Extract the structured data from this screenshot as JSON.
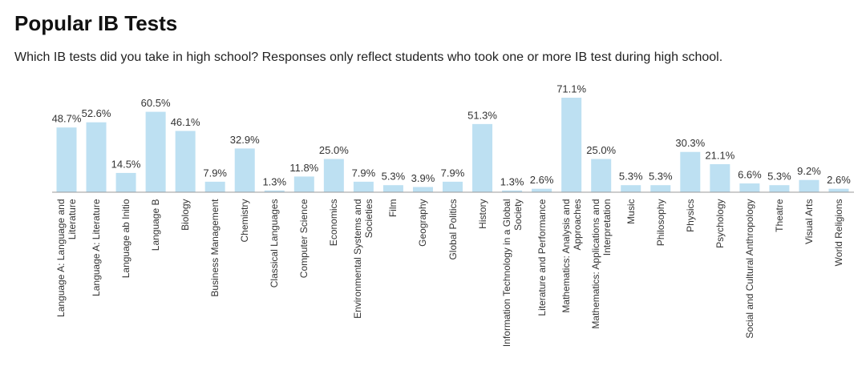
{
  "chart_data": {
    "type": "bar",
    "title": "Popular IB Tests",
    "subtitle": "Which IB tests did you take in high school? Responses only reflect students who took one or more IB test during high school.",
    "color": "#bde0f2",
    "categories": [
      "Language A: Language and Literature",
      "Language A: Literature",
      "Language ab Initio",
      "Language B",
      "Biology",
      "Business Management",
      "Chemistry",
      "Classical Languages",
      "Computer Science",
      "Economics",
      "Environmental Systems and Societies",
      "Film",
      "Geography",
      "Global Politics",
      "History",
      "Information Technology in a Global Society",
      "Literature and Performance",
      "Mathematics: Analysis and Approaches",
      "Mathematics: Applications and Interpretation",
      "Music",
      "Philosophy",
      "Physics",
      "Psychology",
      "Social and Cultural Anthropology",
      "Theatre",
      "Visual Arts",
      "World Religions"
    ],
    "values": [
      48.7,
      52.6,
      14.5,
      60.5,
      46.1,
      7.9,
      32.9,
      1.3,
      11.8,
      25.0,
      7.9,
      5.3,
      3.9,
      7.9,
      51.3,
      1.3,
      2.6,
      71.1,
      25.0,
      5.3,
      5.3,
      30.3,
      21.1,
      6.6,
      5.3,
      9.2,
      2.6
    ],
    "value_labels": [
      "48.7%",
      "52.6%",
      "14.5%",
      "60.5%",
      "46.1%",
      "7.9%",
      "32.9%",
      "1.3%",
      "11.8%",
      "25.0%",
      "7.9%",
      "5.3%",
      "3.9%",
      "7.9%",
      "51.3%",
      "1.3%",
      "2.6%",
      "71.1%",
      "25.0%",
      "5.3%",
      "5.3%",
      "30.3%",
      "21.1%",
      "6.6%",
      "5.3%",
      "9.2%",
      "2.6%"
    ]
  }
}
